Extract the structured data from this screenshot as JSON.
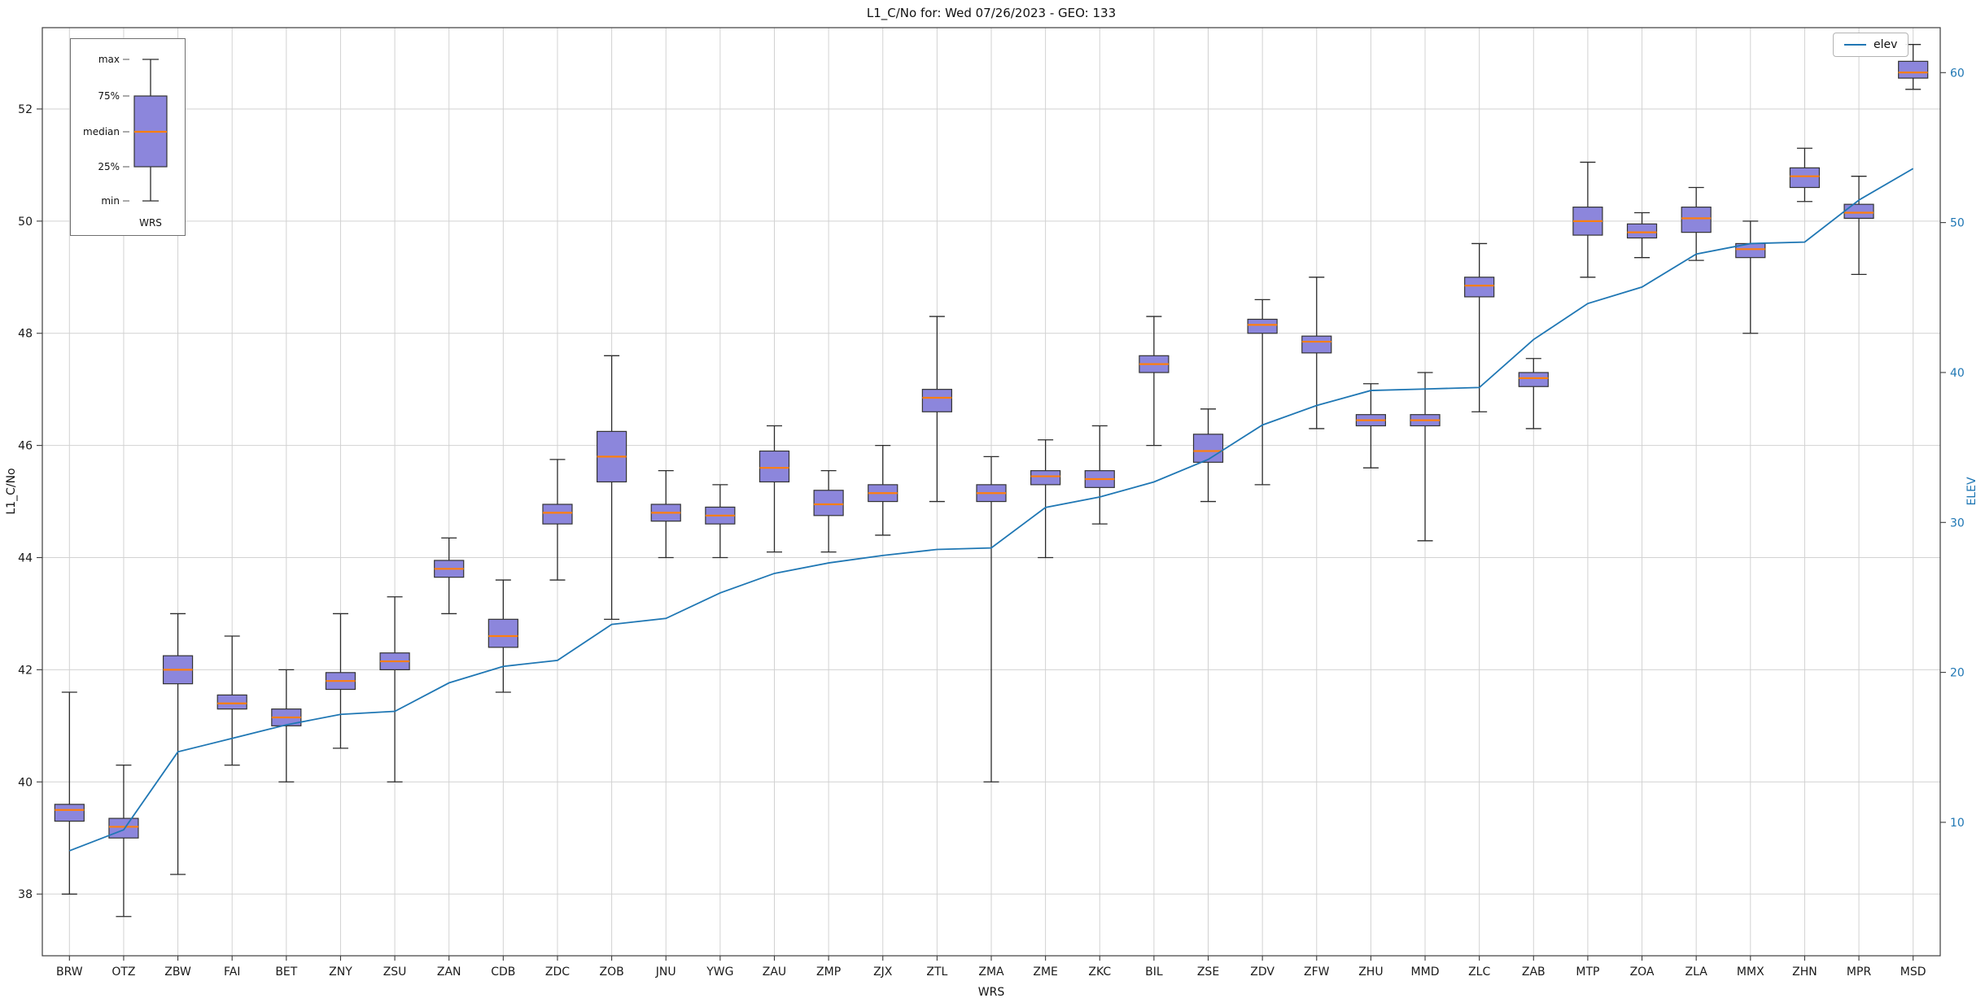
{
  "colors": {
    "box_fill": "#8c86dc",
    "box_edge": "#333333",
    "median": "#ff7f0e",
    "whisker": "#2b2b2b",
    "elev_line": "#1f77b4",
    "grid": "#d2d2d2",
    "frame": "#3c3c3c",
    "right_axis_text": "#1f77b4",
    "left_axis_text": "#1a1a1a"
  },
  "inset_legend": {
    "labels": [
      "max",
      "75%",
      "median",
      "25%",
      "min"
    ],
    "x_label": "WRS"
  },
  "chart_data": {
    "type": "boxplot+line",
    "title": "L1_C/No for: Wed 07/26/2023 - GEO: 133",
    "xlabel": "WRS",
    "ylabel_left": "L1_C/No",
    "ylabel_right": "ELEV",
    "y_left_ticks": [
      38,
      40,
      42,
      44,
      46,
      48,
      50,
      52
    ],
    "y_right_ticks": [
      10,
      20,
      30,
      40,
      50,
      60
    ],
    "y_left_range": [
      36.9,
      53.45
    ],
    "y_right_range": [
      1.1,
      63.0
    ],
    "grid": true,
    "legend": {
      "label": "elev",
      "position": "upper right"
    },
    "categories": [
      "BRW",
      "OTZ",
      "ZBW",
      "FAI",
      "BET",
      "ZNY",
      "ZSU",
      "ZAN",
      "CDB",
      "ZDC",
      "ZOB",
      "JNU",
      "YWG",
      "ZAU",
      "ZMP",
      "ZJX",
      "ZTL",
      "ZMA",
      "ZME",
      "ZKC",
      "BIL",
      "ZSE",
      "ZDV",
      "ZFW",
      "ZHU",
      "MMD",
      "ZLC",
      "ZAB",
      "MTP",
      "ZOA",
      "ZLA",
      "MMX",
      "ZHN",
      "MPR",
      "MSD"
    ],
    "box_stats": [
      {
        "min": 38.0,
        "q1": 39.3,
        "median": 39.5,
        "q3": 39.6,
        "max": 41.6
      },
      {
        "min": 37.6,
        "q1": 39.0,
        "median": 39.2,
        "q3": 39.35,
        "max": 40.3
      },
      {
        "min": 38.35,
        "q1": 41.75,
        "median": 42.0,
        "q3": 42.25,
        "max": 43.0
      },
      {
        "min": 40.3,
        "q1": 41.3,
        "median": 41.4,
        "q3": 41.55,
        "max": 42.6
      },
      {
        "min": 40.0,
        "q1": 41.0,
        "median": 41.15,
        "q3": 41.3,
        "max": 42.0
      },
      {
        "min": 40.6,
        "q1": 41.65,
        "median": 41.8,
        "q3": 41.95,
        "max": 43.0
      },
      {
        "min": 40.0,
        "q1": 42.0,
        "median": 42.15,
        "q3": 42.3,
        "max": 43.3
      },
      {
        "min": 43.0,
        "q1": 43.65,
        "median": 43.8,
        "q3": 43.95,
        "max": 44.35
      },
      {
        "min": 41.6,
        "q1": 42.4,
        "median": 42.6,
        "q3": 42.9,
        "max": 43.6
      },
      {
        "min": 43.6,
        "q1": 44.6,
        "median": 44.8,
        "q3": 44.95,
        "max": 45.75
      },
      {
        "min": 42.9,
        "q1": 45.35,
        "median": 45.8,
        "q3": 46.25,
        "max": 47.6
      },
      {
        "min": 44.0,
        "q1": 44.65,
        "median": 44.8,
        "q3": 44.95,
        "max": 45.55
      },
      {
        "min": 44.0,
        "q1": 44.6,
        "median": 44.75,
        "q3": 44.9,
        "max": 45.3
      },
      {
        "min": 44.1,
        "q1": 45.35,
        "median": 45.6,
        "q3": 45.9,
        "max": 46.35
      },
      {
        "min": 44.1,
        "q1": 44.75,
        "median": 44.95,
        "q3": 45.2,
        "max": 45.55
      },
      {
        "min": 44.4,
        "q1": 45.0,
        "median": 45.15,
        "q3": 45.3,
        "max": 46.0
      },
      {
        "min": 45.0,
        "q1": 46.6,
        "median": 46.85,
        "q3": 47.0,
        "max": 48.3
      },
      {
        "min": 40.0,
        "q1": 45.0,
        "median": 45.15,
        "q3": 45.3,
        "max": 45.8
      },
      {
        "min": 44.0,
        "q1": 45.3,
        "median": 45.45,
        "q3": 45.55,
        "max": 46.1
      },
      {
        "min": 44.6,
        "q1": 45.25,
        "median": 45.4,
        "q3": 45.55,
        "max": 46.35
      },
      {
        "min": 46.0,
        "q1": 47.3,
        "median": 47.45,
        "q3": 47.6,
        "max": 48.3
      },
      {
        "min": 45.0,
        "q1": 45.7,
        "median": 45.9,
        "q3": 46.2,
        "max": 46.65
      },
      {
        "min": 45.3,
        "q1": 48.0,
        "median": 48.15,
        "q3": 48.25,
        "max": 48.6
      },
      {
        "min": 46.3,
        "q1": 47.65,
        "median": 47.85,
        "q3": 47.95,
        "max": 49.0
      },
      {
        "min": 45.6,
        "q1": 46.35,
        "median": 46.45,
        "q3": 46.55,
        "max": 47.1
      },
      {
        "min": 44.3,
        "q1": 46.35,
        "median": 46.45,
        "q3": 46.55,
        "max": 47.3
      },
      {
        "min": 46.6,
        "q1": 48.65,
        "median": 48.85,
        "q3": 49.0,
        "max": 49.6
      },
      {
        "min": 46.3,
        "q1": 47.05,
        "median": 47.2,
        "q3": 47.3,
        "max": 47.55
      },
      {
        "min": 49.0,
        "q1": 49.75,
        "median": 50.0,
        "q3": 50.25,
        "max": 51.05
      },
      {
        "min": 49.35,
        "q1": 49.7,
        "median": 49.8,
        "q3": 49.95,
        "max": 50.15
      },
      {
        "min": 49.3,
        "q1": 49.8,
        "median": 50.05,
        "q3": 50.25,
        "max": 50.6
      },
      {
        "min": 48.0,
        "q1": 49.35,
        "median": 49.5,
        "q3": 49.6,
        "max": 50.0
      },
      {
        "min": 50.35,
        "q1": 50.6,
        "median": 50.8,
        "q3": 50.95,
        "max": 51.3
      },
      {
        "min": 49.05,
        "q1": 50.05,
        "median": 50.15,
        "q3": 50.3,
        "max": 50.8
      },
      {
        "min": 52.35,
        "q1": 52.55,
        "median": 52.65,
        "q3": 52.85,
        "max": 53.15
      }
    ],
    "elev": [
      8.1,
      9.5,
      14.7,
      15.6,
      16.5,
      17.2,
      17.4,
      19.3,
      20.4,
      20.8,
      23.2,
      23.6,
      25.3,
      26.6,
      27.3,
      27.8,
      28.2,
      28.3,
      31.0,
      31.7,
      32.7,
      34.2,
      36.5,
      37.8,
      38.8,
      38.9,
      39.0,
      42.2,
      44.6,
      45.7,
      47.9,
      48.6,
      48.7,
      51.5,
      53.6
    ]
  }
}
